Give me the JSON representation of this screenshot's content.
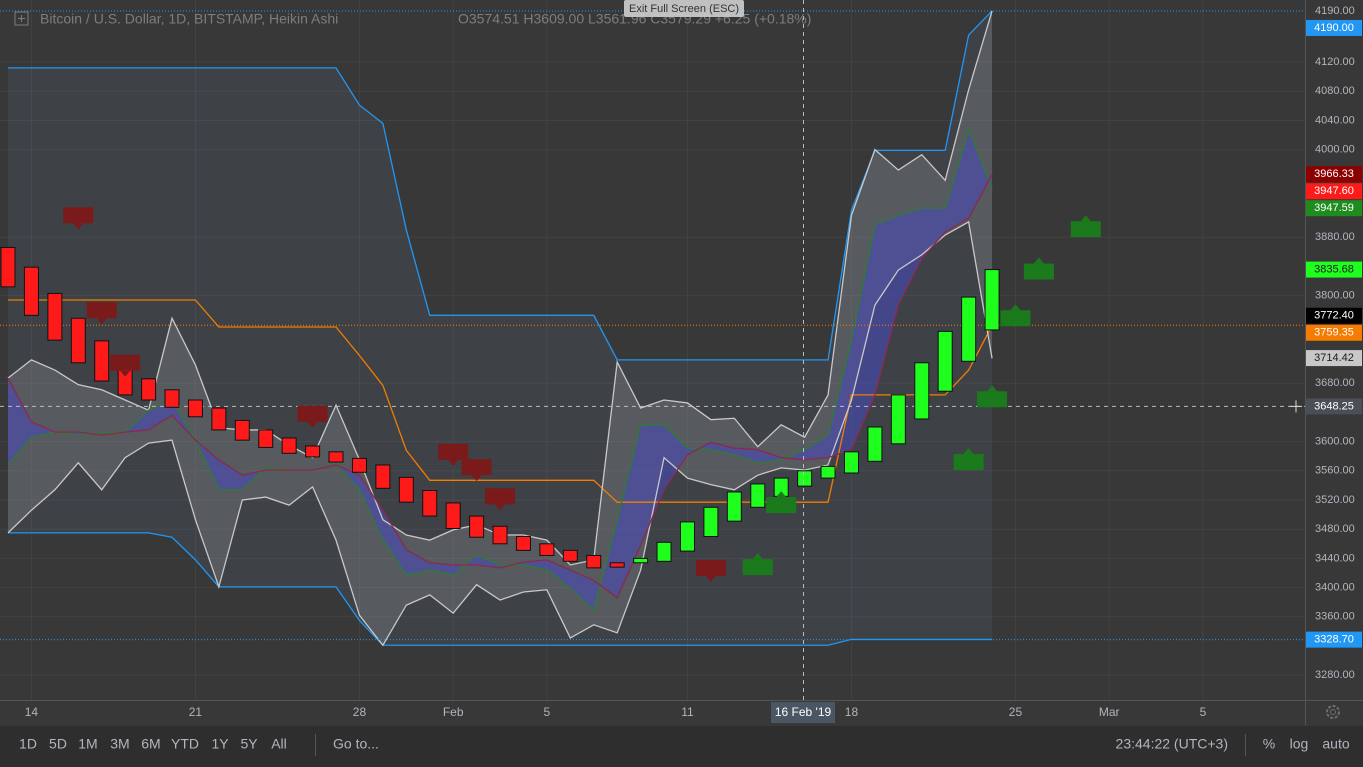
{
  "header": {
    "symbol": "Bitcoin / U.S. Dollar, 1D, BITSTAMP, Heikin Ashi",
    "ohlc": "O3574.51 H3609.00 L3561.96 C3579.29 +6.25 (+0.18%)"
  },
  "tooltip": "Exit Full Screen (ESC)",
  "toolbar": {
    "ranges": [
      "1D",
      "5D",
      "1M",
      "3M",
      "6M",
      "YTD",
      "1Y",
      "5Y",
      "All"
    ],
    "goto": "Go to...",
    "time": "23:44:22 (UTC+3)",
    "options": [
      "%",
      "log",
      "auto"
    ]
  },
  "chart_data": {
    "type": "candlestick",
    "categories": [
      null,
      "14",
      null,
      null,
      null,
      null,
      null,
      null,
      "21",
      null,
      null,
      null,
      null,
      null,
      null,
      "28",
      null,
      null,
      null,
      "Feb",
      null,
      null,
      null,
      "5",
      null,
      null,
      null,
      null,
      null,
      "11",
      null,
      null,
      null,
      null,
      null,
      null,
      "18",
      null,
      null,
      null,
      null,
      null,
      null,
      "25",
      null,
      null,
      null,
      "Mar",
      null,
      null,
      null,
      "5",
      null,
      null,
      null
    ],
    "open": [
      3866,
      3839,
      3803,
      3769,
      3738,
      3709,
      3686,
      3671,
      3657,
      3646,
      3629,
      3616,
      3605,
      3594,
      3586,
      3577,
      3568,
      3551,
      3533,
      3516,
      3498,
      3484,
      3470,
      3460,
      3451,
      3444,
      3434,
      3434,
      3436,
      3450,
      3470,
      3491,
      3510,
      3525,
      3539,
      3550,
      3557,
      3573,
      3597,
      3631,
      3669,
      3710,
      3753,
      null,
      null,
      null,
      null,
      null,
      null,
      null,
      null,
      null,
      null,
      null,
      null
    ],
    "close": [
      3812,
      3773,
      3739,
      3708,
      3683,
      3664,
      3657,
      3647,
      3634,
      3616,
      3602,
      3592,
      3584,
      3579,
      3572,
      3558,
      3536,
      3517,
      3498,
      3481,
      3469,
      3460,
      3451,
      3444,
      3436,
      3427,
      3428,
      3440,
      3462,
      3490,
      3510,
      3531,
      3542,
      3550,
      3560,
      3566,
      3586,
      3620,
      3664,
      3708,
      3751,
      3798,
      3835.68,
      null,
      null,
      null,
      null,
      null,
      null,
      null,
      null,
      null,
      null,
      null,
      null
    ],
    "colors": {
      "up": "#1eff1e",
      "down": "#ff1a1a"
    },
    "series": [
      {
        "color": "#2196f3",
        "values": [
          4112,
          4112,
          4112,
          4112,
          4112,
          4112,
          4112,
          4112,
          4112,
          4112,
          4112,
          4112,
          4112,
          4112,
          4112,
          4061,
          4036,
          3890,
          3773,
          3773,
          3773,
          3773,
          3773,
          3773,
          3773,
          3773,
          3712,
          3712,
          3712,
          3712,
          3712,
          3712,
          3712,
          3712,
          3712,
          3712,
          3917,
          3999,
          3999,
          3999,
          3999,
          4157,
          4190,
          null,
          null,
          null,
          null,
          null,
          null,
          null,
          null,
          null,
          null,
          null,
          null
        ]
      },
      {
        "color": "#2196f3",
        "values": [
          3475,
          3475,
          3475,
          3475,
          3475,
          3475,
          3475,
          3469,
          3438,
          3401,
          3401,
          3401,
          3401,
          3401,
          3401,
          3355,
          3321,
          3321,
          3321,
          3321,
          3321,
          3321,
          3321,
          3321,
          3321,
          3321,
          3321,
          3321,
          3321,
          3321,
          3321,
          3321,
          3321,
          3321,
          3321,
          3321,
          3329,
          3329,
          3329,
          3329,
          3329,
          3329,
          3329,
          null,
          null,
          null,
          null,
          null,
          null,
          null,
          null,
          null,
          null,
          null,
          null
        ]
      },
      {
        "color": "#f57c00",
        "values": [
          3794,
          3794,
          3794,
          3794,
          3794,
          3794,
          3794,
          3794,
          3794,
          3757,
          3757,
          3757,
          3757,
          3757,
          3757,
          3718,
          3677,
          3588,
          3547,
          3547,
          3547,
          3547,
          3547,
          3547,
          3547,
          3547,
          3517,
          3517,
          3517,
          3517,
          3517,
          3517,
          3517,
          3517,
          3517,
          3517,
          3664,
          3664,
          3664,
          3664,
          3664,
          3698,
          3759,
          null,
          null,
          null,
          null,
          null,
          null,
          null,
          null,
          null,
          null,
          null,
          null
        ]
      },
      {
        "color": "#c8c8c8",
        "values": [
          3687,
          3712,
          3698,
          3678,
          3671,
          3657,
          3643,
          3769,
          3705,
          3619,
          3616,
          3616,
          3595,
          3578,
          3650,
          3575,
          3493,
          3472,
          3465,
          3479,
          3486,
          3472,
          3472,
          3465,
          3431,
          3438,
          3709,
          3646,
          3657,
          3653,
          3630,
          3632,
          3593,
          3623,
          3606,
          3664,
          3910,
          4000,
          3972,
          3993,
          3958,
          4082,
          4190,
          null,
          null,
          null,
          null,
          null,
          null,
          null,
          null,
          null,
          null,
          null,
          null
        ]
      },
      {
        "color": "#c8c8c8",
        "values": [
          3475,
          3506,
          3534,
          3571,
          3534,
          3578,
          3598,
          3602,
          3493,
          3401,
          3520,
          3524,
          3513,
          3538,
          3465,
          3362,
          3321,
          3376,
          3390,
          3365,
          3404,
          3383,
          3394,
          3397,
          3331,
          3349,
          3338,
          3424,
          3578,
          3550,
          3541,
          3534,
          3554,
          3564,
          3561,
          3568,
          3657,
          3787,
          3835,
          3856,
          3883,
          3901,
          3714,
          null,
          null,
          null,
          null,
          null,
          null,
          null,
          null,
          null,
          null,
          null,
          null
        ]
      },
      {
        "color": "#2e7d32",
        "values": [
          3568,
          3606,
          3613,
          3609,
          3612,
          3613,
          3643,
          3657,
          3602,
          3534,
          3534,
          3564,
          3561,
          3561,
          3568,
          3534,
          3465,
          3417,
          3424,
          3417,
          3445,
          3431,
          3431,
          3424,
          3399,
          3369,
          3493,
          3623,
          3623,
          3591,
          3589,
          3582,
          3571,
          3575,
          3589,
          3609,
          3739,
          3897,
          3910,
          3920,
          3920,
          4027,
          3948,
          null,
          null,
          null,
          null,
          null,
          null,
          null,
          null,
          null,
          null,
          null,
          null
        ]
      },
      {
        "color": "#8b2a4a",
        "values": [
          3687,
          3627,
          3613,
          3613,
          3609,
          3613,
          3616,
          3636,
          3602,
          3575,
          3554,
          3561,
          3561,
          3561,
          3568,
          3554,
          3506,
          3452,
          3434,
          3431,
          3431,
          3427,
          3435,
          3438,
          3424,
          3410,
          3386,
          3458,
          3534,
          3582,
          3599,
          3591,
          3589,
          3578,
          3575,
          3578,
          3589,
          3664,
          3787,
          3851,
          3887,
          3906,
          3966,
          null,
          null,
          null,
          null,
          null,
          null,
          null,
          null,
          null,
          null,
          null,
          null
        ]
      }
    ],
    "fills": [
      {
        "between": [
          0,
          1
        ],
        "color": "#6a8fb8",
        "opacity": 0.12
      },
      {
        "between": [
          3,
          4
        ],
        "color": "#b0b0b0",
        "opacity": 0.22
      },
      {
        "between": [
          5,
          6
        ],
        "color": "#4a4ab8",
        "opacity": 0.6
      }
    ],
    "markers": {
      "sell": {
        "color": "#7a1a1a",
        "values": [
          null,
          null,
          null,
          3910,
          3780,
          3708,
          null,
          null,
          null,
          null,
          null,
          null,
          null,
          3638,
          null,
          null,
          null,
          null,
          null,
          3586,
          3565,
          3525,
          null,
          null,
          null,
          null,
          null,
          null,
          null,
          null,
          3427,
          null,
          null,
          null,
          null,
          null,
          null,
          null,
          null,
          null,
          null,
          null,
          null,
          null,
          null,
          null,
          null,
          null,
          null,
          null,
          null,
          null,
          null,
          null,
          null
        ]
      },
      "buy": {
        "color": "#1b7a1b",
        "values": [
          null,
          null,
          null,
          null,
          null,
          null,
          null,
          null,
          null,
          null,
          null,
          null,
          null,
          null,
          null,
          null,
          null,
          null,
          null,
          null,
          null,
          null,
          null,
          null,
          null,
          null,
          null,
          null,
          null,
          null,
          null,
          null,
          3428,
          3513,
          null,
          null,
          null,
          null,
          null,
          null,
          null,
          3572,
          3658,
          3769,
          3833,
          null,
          3891,
          null,
          null,
          null,
          null,
          null,
          null,
          null,
          null
        ]
      }
    },
    "ylim": [
      3246,
      4205
    ],
    "yticks": [
      {
        "value": 3280,
        "label": "3280.00"
      },
      {
        "value": 3360,
        "label": "3360.00"
      },
      {
        "value": 3400,
        "label": "3400.00"
      },
      {
        "value": 3440,
        "label": "3440.00"
      },
      {
        "value": 3480,
        "label": "3480.00"
      },
      {
        "value": 3520,
        "label": "3520.00"
      },
      {
        "value": 3560,
        "label": "3560.00"
      },
      {
        "value": 3600,
        "label": "3600.00"
      },
      {
        "value": 3680,
        "label": "3680.00"
      },
      {
        "value": 3800,
        "label": "3800.00"
      },
      {
        "value": 3880,
        "label": "3880.00"
      },
      {
        "value": 4000,
        "label": "4000.00"
      },
      {
        "value": 4040,
        "label": "4040.00"
      },
      {
        "value": 4080,
        "label": "4080.00"
      },
      {
        "value": 4120,
        "label": "4120.00"
      }
    ],
    "grid": true,
    "top_line": {
      "value": 4190,
      "label": "4190.00"
    },
    "price_labels": [
      {
        "value": 4190,
        "label": "4190.00",
        "color": "#2196f3",
        "text_color": "#ffffff",
        "line": true
      },
      {
        "value": 3966.33,
        "label": "3966.33",
        "color": "#8b0000",
        "text_color": "#ffffff",
        "line": false
      },
      {
        "value": 3947.6,
        "label": "3947.60",
        "color": "#ff1a1a",
        "text_color": "#ffffff",
        "line": false
      },
      {
        "value": 3947.59,
        "label": "3947.59",
        "color": "#1e8c1e",
        "text_color": "#ffffff",
        "line": false
      },
      {
        "value": 3835.68,
        "label": "3835.68",
        "color": "#1eff1e",
        "text_color": "#1a1a1a",
        "line": false
      },
      {
        "value": 3772.4,
        "label": "3772.40",
        "color": "#000000",
        "text_color": "#ffffff",
        "line": false
      },
      {
        "value": 3759.35,
        "label": "3759.35",
        "color": "#f57c00",
        "text_color": "#ffffff",
        "line": true
      },
      {
        "value": 3714.42,
        "label": "3714.42",
        "color": "#c8c8c8",
        "text_color": "#1a1a1a",
        "line": false
      },
      {
        "value": 3328.7,
        "label": "3328.70",
        "color": "#2196f3",
        "text_color": "#ffffff",
        "line": true
      }
    ],
    "crosshair": {
      "value": 3648.25,
      "label": "3648.25",
      "x_label": "16 Feb '19"
    }
  }
}
